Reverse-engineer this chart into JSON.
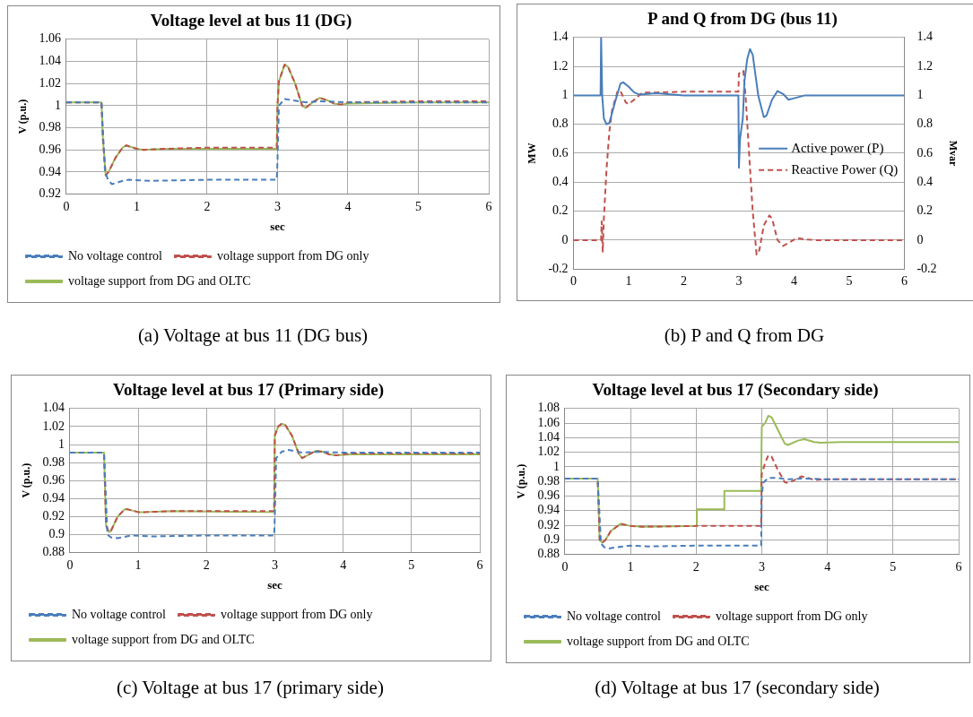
{
  "chart_data": [
    {
      "type": "line",
      "title": "Voltage level at bus 11 (DG)",
      "xlabel": "sec",
      "ylabel": "V (p.u.)",
      "xlim": [
        0,
        6
      ],
      "xticks": [
        0,
        1,
        2,
        3,
        4,
        5,
        6
      ],
      "ylim": [
        0.92,
        1.06
      ],
      "yticks": [
        0.92,
        0.94,
        0.96,
        0.98,
        1,
        1.02,
        1.04,
        1.06
      ],
      "grid": true,
      "legend": "bottom",
      "marker": "none",
      "annotations": [
        "(a) Voltage at bus 11 (DG bus)"
      ],
      "series": [
        {
          "name": "No voltage control",
          "color": "#4a7ebb",
          "line_style": "dashed",
          "x": [
            0,
            0.5,
            0.55,
            0.6,
            0.65,
            0.8,
            0.9,
            1.2,
            2,
            2.99,
            3.0,
            3.02,
            3.1,
            3.2,
            3.4,
            3.6,
            4,
            6
          ],
          "values": [
            1.003,
            1.003,
            0.94,
            0.932,
            0.929,
            0.932,
            0.933,
            0.932,
            0.933,
            0.933,
            0.95,
            1.0,
            1.006,
            1.005,
            1.003,
            1.004,
            1.003,
            1.003
          ]
        },
        {
          "name": "voltage support from DG only",
          "color": "#c0504d",
          "line_style": "dashed",
          "x": [
            0,
            0.5,
            0.52,
            0.56,
            0.6,
            0.7,
            0.8,
            0.85,
            0.9,
            1.0,
            1.1,
            1.4,
            2,
            2.99,
            3.0,
            3.02,
            3.1,
            3.15,
            3.25,
            3.35,
            3.4,
            3.5,
            3.6,
            3.7,
            3.8,
            3.9,
            4,
            5,
            6
          ],
          "values": [
            1.003,
            1.003,
            0.97,
            0.937,
            0.94,
            0.953,
            0.962,
            0.964,
            0.963,
            0.961,
            0.96,
            0.961,
            0.962,
            0.962,
            1.0,
            1.022,
            1.037,
            1.035,
            1.02,
            1.0,
            0.998,
            1.003,
            1.007,
            1.005,
            1.002,
            1.001,
            1.003,
            1.004,
            1.004
          ]
        },
        {
          "name": "voltage support from DG and OLTC",
          "color": "#9bbb59",
          "line_style": "solid",
          "x": [
            0,
            0.5,
            0.52,
            0.56,
            0.6,
            0.7,
            0.8,
            0.85,
            0.9,
            1.0,
            1.1,
            1.4,
            2,
            2.99,
            3.0,
            3.02,
            3.1,
            3.15,
            3.25,
            3.35,
            3.4,
            3.5,
            3.6,
            3.7,
            3.8,
            3.9,
            4,
            5,
            6
          ],
          "values": [
            1.003,
            1.003,
            0.97,
            0.937,
            0.94,
            0.953,
            0.962,
            0.964,
            0.963,
            0.961,
            0.96,
            0.961,
            0.961,
            0.961,
            1.0,
            1.022,
            1.037,
            1.035,
            1.02,
            1.0,
            0.998,
            1.003,
            1.007,
            1.005,
            1.002,
            1.001,
            1.002,
            1.003,
            1.003
          ]
        }
      ]
    },
    {
      "type": "line",
      "title": "P and Q from DG (bus 11)",
      "ylabel": "MW",
      "y2label": "Mvar",
      "xlim": [
        0,
        6
      ],
      "xticks": [
        0,
        1,
        2,
        3,
        4,
        5,
        6
      ],
      "ylim": [
        -0.2,
        1.4
      ],
      "yticks": [
        -0.2,
        0,
        0.2,
        0.4,
        0.6,
        0.8,
        1,
        1.2,
        1.4
      ],
      "y2lim": [
        -0.2,
        1.4
      ],
      "y2ticks": [
        -0.2,
        0,
        0.2,
        0.4,
        0.6,
        0.8,
        1,
        1.2,
        1.4
      ],
      "grid": "y",
      "legend": "right",
      "marker": "none",
      "annotations": [
        "(b) P and Q from DG"
      ],
      "series": [
        {
          "name": "Active power (P)",
          "color": "#4a7ebb",
          "line_style": "solid",
          "x": [
            0,
            0.49,
            0.5,
            0.52,
            0.55,
            0.6,
            0.65,
            0.75,
            0.85,
            0.9,
            1,
            1.1,
            1.2,
            1.5,
            2,
            2.99,
            3.0,
            3.02,
            3.07,
            3.1,
            3.15,
            3.2,
            3.25,
            3.35,
            3.45,
            3.5,
            3.6,
            3.7,
            3.8,
            3.9,
            4.0,
            4.2,
            5,
            6
          ],
          "values": [
            1,
            1,
            1.4,
            1.0,
            0.84,
            0.8,
            0.81,
            0.95,
            1.08,
            1.09,
            1.06,
            1.02,
            1.005,
            1.015,
            1.0,
            1.0,
            0.5,
            0.7,
            0.84,
            1.1,
            1.25,
            1.32,
            1.28,
            1.0,
            0.85,
            0.86,
            0.97,
            1.03,
            1.01,
            0.97,
            0.98,
            1.0,
            1.0,
            1.0
          ]
        },
        {
          "name": "Reactive Power (Q)",
          "color": "#c0504d",
          "line_style": "dashed",
          "axis": "y2",
          "x": [
            0,
            0.5,
            0.51,
            0.53,
            0.55,
            0.6,
            0.65,
            0.7,
            0.8,
            0.85,
            0.95,
            1.0,
            1.1,
            1.25,
            1.5,
            2,
            2.99,
            3.0,
            3.08,
            3.12,
            3.2,
            3.25,
            3.32,
            3.37,
            3.45,
            3.55,
            3.6,
            3.7,
            3.8,
            3.9,
            4.05,
            4.2,
            4.4,
            6
          ],
          "values": [
            0,
            0,
            0.13,
            -0.08,
            0.15,
            0.5,
            0.75,
            0.9,
            1.03,
            1.03,
            0.95,
            0.94,
            0.97,
            1.02,
            1.02,
            1.025,
            1.025,
            1.15,
            1.17,
            1.0,
            0.5,
            0.2,
            -0.1,
            -0.07,
            0.1,
            0.17,
            0.15,
            0.0,
            -0.04,
            -0.02,
            0.015,
            0.005,
            0,
            0
          ]
        }
      ]
    },
    {
      "type": "line",
      "title": "Voltage level at bus 17 (Primary side)",
      "xlabel": "sec",
      "ylabel": "V (p.u.)",
      "xlim": [
        0,
        6
      ],
      "xticks": [
        0,
        1,
        2,
        3,
        4,
        5,
        6
      ],
      "ylim": [
        0.88,
        1.04
      ],
      "yticks": [
        0.88,
        0.9,
        0.92,
        0.94,
        0.96,
        0.98,
        1,
        1.02,
        1.04
      ],
      "grid": true,
      "legend": "bottom",
      "marker": "none",
      "annotations": [
        "(c) Voltage at bus 17 (primary side)"
      ],
      "series": [
        {
          "name": "No voltage control",
          "color": "#4a7ebb",
          "line_style": "dashed",
          "x": [
            0,
            0.5,
            0.55,
            0.6,
            0.7,
            0.9,
            1.2,
            2,
            2.99,
            3.0,
            3.02,
            3.1,
            3.2,
            3.4,
            3.6,
            4,
            6
          ],
          "values": [
            0.991,
            0.991,
            0.9,
            0.897,
            0.896,
            0.899,
            0.898,
            0.899,
            0.899,
            0.92,
            0.985,
            0.992,
            0.994,
            0.991,
            0.992,
            0.991,
            0.991
          ]
        },
        {
          "name": "voltage support from DG only",
          "color": "#c0504d",
          "line_style": "dashed",
          "x": [
            0,
            0.5,
            0.53,
            0.57,
            0.6,
            0.7,
            0.8,
            0.85,
            1,
            1.1,
            1.5,
            2.99,
            3.0,
            3.05,
            3.1,
            3.15,
            3.25,
            3.35,
            3.4,
            3.5,
            3.6,
            3.7,
            3.8,
            3.9,
            4.1,
            6
          ],
          "values": [
            0.991,
            0.991,
            0.91,
            0.903,
            0.904,
            0.92,
            0.928,
            0.928,
            0.925,
            0.925,
            0.926,
            0.926,
            1.01,
            1.02,
            1.023,
            1.022,
            1.01,
            0.99,
            0.985,
            0.989,
            0.993,
            0.992,
            0.989,
            0.988,
            0.99,
            0.99
          ]
        },
        {
          "name": "voltage support from DG and OLTC",
          "color": "#9bbb59",
          "line_style": "solid",
          "x": [
            0,
            0.5,
            0.53,
            0.57,
            0.6,
            0.7,
            0.8,
            0.85,
            1,
            1.1,
            1.5,
            2.99,
            3.0,
            3.05,
            3.1,
            3.15,
            3.25,
            3.35,
            3.4,
            3.5,
            3.6,
            3.7,
            3.8,
            3.9,
            4.1,
            6
          ],
          "values": [
            0.991,
            0.991,
            0.91,
            0.903,
            0.904,
            0.92,
            0.928,
            0.928,
            0.925,
            0.925,
            0.926,
            0.925,
            1.01,
            1.02,
            1.023,
            1.022,
            1.01,
            0.99,
            0.985,
            0.989,
            0.993,
            0.992,
            0.989,
            0.988,
            0.989,
            0.989
          ]
        }
      ]
    },
    {
      "type": "line",
      "title": "Voltage level at bus 17 (Secondary side)",
      "xlabel": "sec",
      "ylabel": "V (p.u.)",
      "xlim": [
        0,
        6
      ],
      "xticks": [
        0,
        1,
        2,
        3,
        4,
        5,
        6
      ],
      "ylim": [
        0.88,
        1.08
      ],
      "yticks": [
        0.88,
        0.9,
        0.92,
        0.94,
        0.96,
        0.98,
        1,
        1.02,
        1.04,
        1.06,
        1.08
      ],
      "grid": true,
      "legend": "bottom",
      "marker": "none",
      "annotations": [
        "(d) Voltage at bus 17 (secondary side)"
      ],
      "series": [
        {
          "name": "No voltage control",
          "color": "#4a7ebb",
          "line_style": "dashed",
          "x": [
            0,
            0.5,
            0.55,
            0.6,
            0.67,
            0.8,
            1,
            1.3,
            2,
            2.99,
            3.0,
            3.02,
            3.1,
            3.2,
            3.4,
            3.6,
            4,
            6
          ],
          "values": [
            0.984,
            0.984,
            0.895,
            0.89,
            0.888,
            0.89,
            0.892,
            0.891,
            0.892,
            0.892,
            0.96,
            0.978,
            0.985,
            0.985,
            0.983,
            0.984,
            0.983,
            0.983
          ]
        },
        {
          "name": "voltage support from DG only",
          "color": "#c0504d",
          "line_style": "dashed",
          "x": [
            0,
            0.5,
            0.53,
            0.57,
            0.62,
            0.7,
            0.85,
            1.0,
            1.2,
            2,
            2.99,
            3.0,
            3.05,
            3.1,
            3.15,
            3.25,
            3.35,
            3.4,
            3.5,
            3.6,
            3.7,
            3.8,
            4,
            6
          ],
          "values": [
            0.984,
            0.984,
            0.9,
            0.896,
            0.9,
            0.912,
            0.922,
            0.919,
            0.918,
            0.919,
            0.919,
            0.99,
            1.005,
            1.016,
            1.014,
            0.995,
            0.979,
            0.978,
            0.982,
            0.987,
            0.985,
            0.982,
            0.983,
            0.983
          ]
        },
        {
          "name": "voltage support from DG and OLTC",
          "color": "#9bbb59",
          "line_style": "solid",
          "x": [
            0,
            0.5,
            0.53,
            0.57,
            0.62,
            0.7,
            0.85,
            1.0,
            1.2,
            2,
            2.01,
            2.42,
            2.43,
            2.99,
            3.0,
            3.05,
            3.1,
            3.15,
            3.25,
            3.35,
            3.4,
            3.55,
            3.65,
            3.8,
            3.9,
            4.2,
            6
          ],
          "values": [
            0.984,
            0.984,
            0.9,
            0.896,
            0.9,
            0.912,
            0.922,
            0.919,
            0.918,
            0.919,
            0.942,
            0.942,
            0.967,
            0.967,
            1.055,
            1.06,
            1.07,
            1.068,
            1.05,
            1.032,
            1.03,
            1.036,
            1.038,
            1.034,
            1.033,
            1.034,
            1.034
          ]
        }
      ]
    }
  ]
}
